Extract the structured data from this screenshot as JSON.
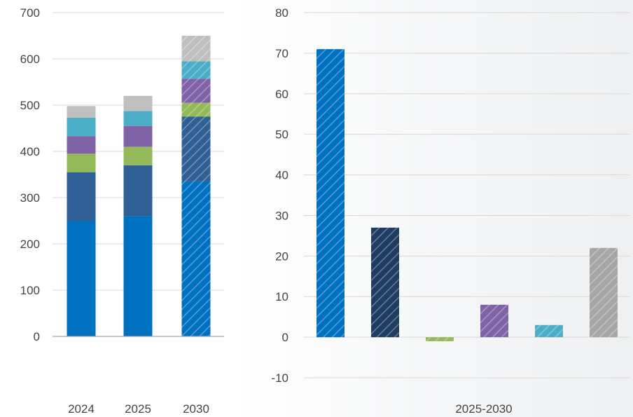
{
  "chart_data": [
    {
      "type": "bar",
      "stacked": true,
      "categories": [
        "2024",
        "2025",
        "2030"
      ],
      "ylim": [
        0,
        700
      ],
      "yticks": [
        0,
        100,
        200,
        300,
        400,
        500,
        600,
        700
      ],
      "grid": true,
      "projected_categories": [
        "2030"
      ],
      "series": [
        {
          "values": [
            250,
            260,
            335
          ],
          "color": "#0070c0"
        },
        {
          "values": [
            105,
            110,
            140
          ],
          "color": "#2f5f94"
        },
        {
          "values": [
            40,
            40,
            30
          ],
          "color": "#93b95a"
        },
        {
          "values": [
            38,
            45,
            52
          ],
          "color": "#7f63a6"
        },
        {
          "values": [
            40,
            32,
            38
          ],
          "color": "#4badc6"
        },
        {
          "values": [
            25,
            33,
            55
          ],
          "color": "#bfbfbf"
        }
      ]
    },
    {
      "type": "bar",
      "xlabel": "2025-2030",
      "ylim": [
        -10,
        80
      ],
      "yticks": [
        -10,
        0,
        10,
        20,
        30,
        40,
        50,
        60,
        70,
        80
      ],
      "grid": true,
      "hatched": true,
      "values": [
        71,
        27,
        -1,
        8,
        3,
        22
      ],
      "colors": [
        "#0070c0",
        "#1f3d63",
        "#93b95a",
        "#7f63a6",
        "#4badc6",
        "#a6a6a6"
      ]
    }
  ]
}
